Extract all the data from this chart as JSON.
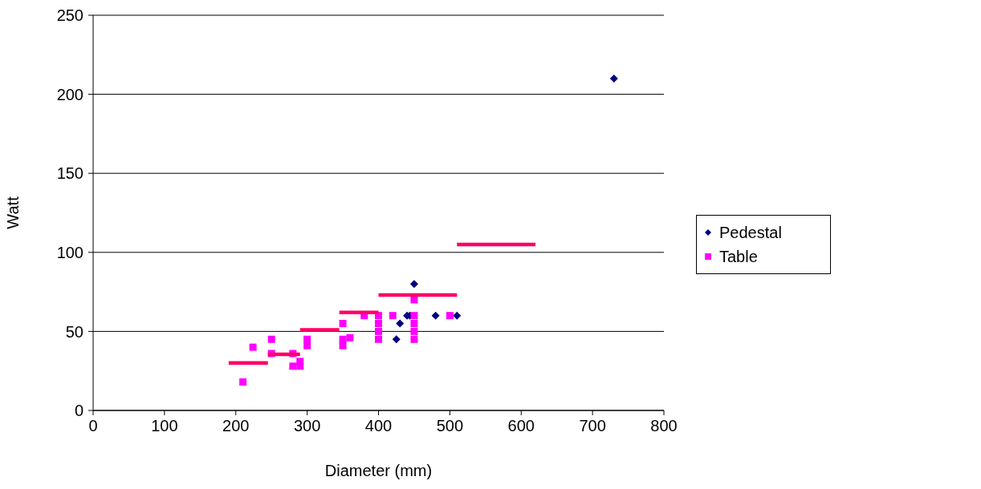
{
  "chart_data": {
    "type": "scatter",
    "xlabel": "Diameter (mm)",
    "ylabel": "Watt",
    "xlim": [
      0,
      800
    ],
    "xticks": [
      0,
      100,
      200,
      300,
      400,
      500,
      600,
      700,
      800
    ],
    "ylim": [
      0,
      250
    ],
    "yticks": [
      0,
      50,
      100,
      150,
      200,
      250
    ],
    "grid": "y",
    "legend": "right",
    "series": [
      {
        "name": "Pedestal",
        "color": "#000080",
        "marker": "diamond",
        "x": [
          425,
          430,
          440,
          444,
          450,
          480,
          510,
          730
        ],
        "values": [
          45,
          55,
          60,
          60,
          80,
          60,
          60,
          210
        ]
      },
      {
        "name": "Table",
        "color": "#ff00ff",
        "marker": "square",
        "x": [
          210,
          224,
          250,
          250,
          280,
          280,
          290,
          290,
          300,
          300,
          350,
          350,
          350,
          360,
          380,
          400,
          400,
          400,
          400,
          420,
          450,
          450,
          450,
          450,
          450,
          500
        ],
        "values": [
          18,
          40,
          45,
          36,
          36,
          28,
          31,
          28,
          45,
          41,
          55,
          45,
          41,
          46,
          60,
          60,
          55,
          50,
          45,
          60,
          70,
          60,
          55,
          50,
          45,
          60
        ]
      },
      {
        "type": "line",
        "color": "#ff0066",
        "marker": "none",
        "x": [
          190,
          245
        ],
        "values": [
          30,
          30
        ]
      },
      {
        "type": "line",
        "color": "#ff0066",
        "marker": "none",
        "x": [
          245,
          290
        ],
        "values": [
          35.5,
          35.5
        ]
      },
      {
        "type": "line",
        "color": "#ff0066",
        "marker": "none",
        "x": [
          290,
          345
        ],
        "values": [
          51,
          51
        ]
      },
      {
        "type": "line",
        "color": "#ff0066",
        "marker": "none",
        "x": [
          345,
          400
        ],
        "values": [
          62,
          62
        ]
      },
      {
        "type": "line",
        "color": "#ff0066",
        "marker": "none",
        "x": [
          400,
          510
        ],
        "values": [
          73,
          73
        ]
      },
      {
        "type": "line",
        "color": "#ff0066",
        "marker": "none",
        "x": [
          510,
          620
        ],
        "values": [
          105,
          105
        ]
      }
    ]
  }
}
